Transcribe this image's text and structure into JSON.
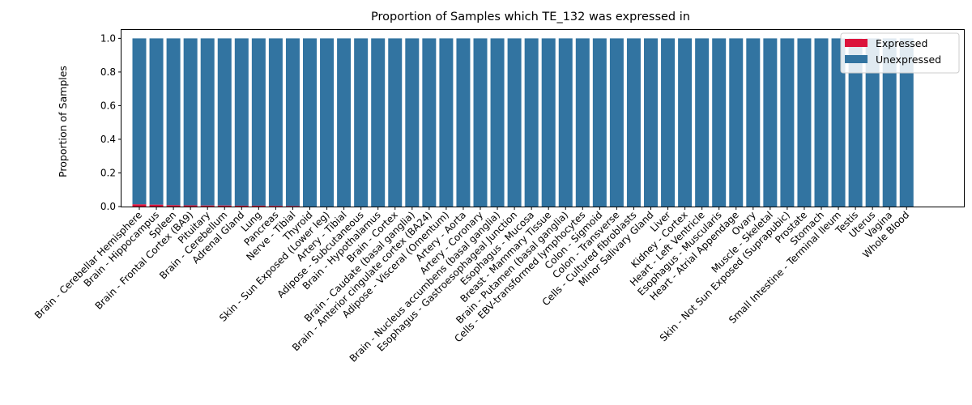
{
  "chart_data": {
    "type": "bar",
    "stacked": true,
    "title": "Proportion of Samples which TE_132 was expressed in",
    "xlabel": "",
    "ylabel": "Proportion of Samples",
    "ylim": [
      0,
      1.05
    ],
    "yticks": [
      "0.0",
      "0.2",
      "0.4",
      "0.6",
      "0.8",
      "1.0"
    ],
    "legend_position": "top-right",
    "grid": false,
    "categories": [
      "Brain - Cerebellar Hemisphere",
      "Brain - Hippocampus",
      "Spleen",
      "Brain - Frontal Cortex (BA9)",
      "Pituitary",
      "Brain - Cerebellum",
      "Adrenal Gland",
      "Lung",
      "Pancreas",
      "Nerve - Tibial",
      "Thyroid",
      "Skin - Sun Exposed (Lower leg)",
      "Artery - Tibial",
      "Adipose - Subcutaneous",
      "Brain - Hypothalamus",
      "Brain - Cortex",
      "Brain - Caudate (basal ganglia)",
      "Brain - Anterior cingulate cortex (BA24)",
      "Adipose - Visceral (Omentum)",
      "Artery - Aorta",
      "Artery - Coronary",
      "Brain - Nucleus accumbens (basal ganglia)",
      "Esophagus - Gastroesophageal Junction",
      "Esophagus - Mucosa",
      "Breast - Mammary Tissue",
      "Brain - Putamen (basal ganglia)",
      "Cells - EBV-transformed lymphocytes",
      "Colon - Sigmoid",
      "Colon - Transverse",
      "Cells - Cultured fibroblasts",
      "Minor Salivary Gland",
      "Liver",
      "Kidney - Cortex",
      "Heart - Left Ventricle",
      "Esophagus - Muscularis",
      "Heart - Atrial Appendage",
      "Ovary",
      "Muscle - Skeletal",
      "Skin - Not Sun Exposed (Suprapubic)",
      "Prostate",
      "Stomach",
      "Small Intestine - Terminal Ileum",
      "Testis",
      "Uterus",
      "Vagina",
      "Whole Blood"
    ],
    "series": [
      {
        "name": "Expressed",
        "color": "#dc143c",
        "values": [
          0.013,
          0.011,
          0.008,
          0.007,
          0.006,
          0.006,
          0.005,
          0.005,
          0.004,
          0.003,
          0,
          0,
          0,
          0,
          0,
          0,
          0,
          0,
          0,
          0,
          0,
          0,
          0,
          0,
          0,
          0,
          0,
          0,
          0,
          0,
          0,
          0,
          0,
          0,
          0,
          0,
          0,
          0,
          0,
          0,
          0,
          0,
          0,
          0,
          0,
          0
        ]
      },
      {
        "name": "Unexpressed",
        "color": "#3274a1",
        "values": [
          0.987,
          0.989,
          0.992,
          0.993,
          0.994,
          0.994,
          0.995,
          0.995,
          0.996,
          0.997,
          1,
          1,
          1,
          1,
          1,
          1,
          1,
          1,
          1,
          1,
          1,
          1,
          1,
          1,
          1,
          1,
          1,
          1,
          1,
          1,
          1,
          1,
          1,
          1,
          1,
          1,
          1,
          1,
          1,
          1,
          1,
          1,
          1,
          1,
          1,
          1
        ]
      }
    ]
  }
}
